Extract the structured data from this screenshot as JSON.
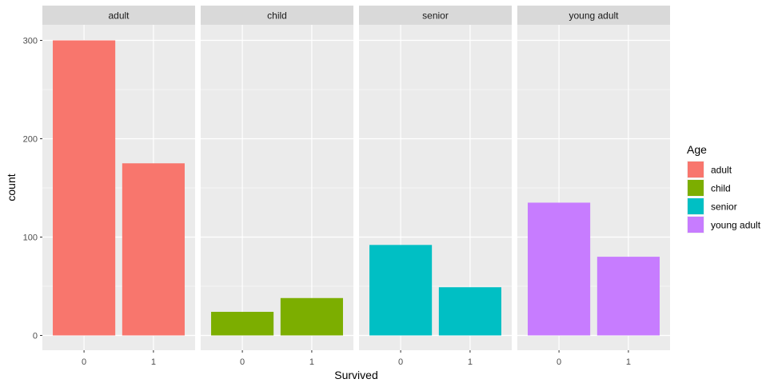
{
  "chart_data": {
    "type": "bar",
    "facet_by": "Age",
    "xlabel": "Survived",
    "ylabel": "count",
    "ylim": [
      0,
      320
    ],
    "yticks": [
      0,
      100,
      200,
      300
    ],
    "categories": [
      "0",
      "1"
    ],
    "panels": [
      {
        "label": "adult",
        "color": "#F8766D",
        "values": [
          300,
          175
        ]
      },
      {
        "label": "child",
        "color": "#7CAE00",
        "values": [
          24,
          38
        ]
      },
      {
        "label": "senior",
        "color": "#00BFC4",
        "values": [
          92,
          49
        ]
      },
      {
        "label": "young adult",
        "color": "#C77CFF",
        "values": [
          135,
          80
        ]
      }
    ],
    "legend": {
      "title": "Age",
      "position": "right",
      "entries": [
        {
          "label": "adult",
          "color": "#F8766D"
        },
        {
          "label": "child",
          "color": "#7CAE00"
        },
        {
          "label": "senior",
          "color": "#00BFC4"
        },
        {
          "label": "young adult",
          "color": "#C77CFF"
        }
      ]
    },
    "grid": true,
    "panel_background": "#EBEBEB",
    "strip_background": "#D9D9D9"
  }
}
